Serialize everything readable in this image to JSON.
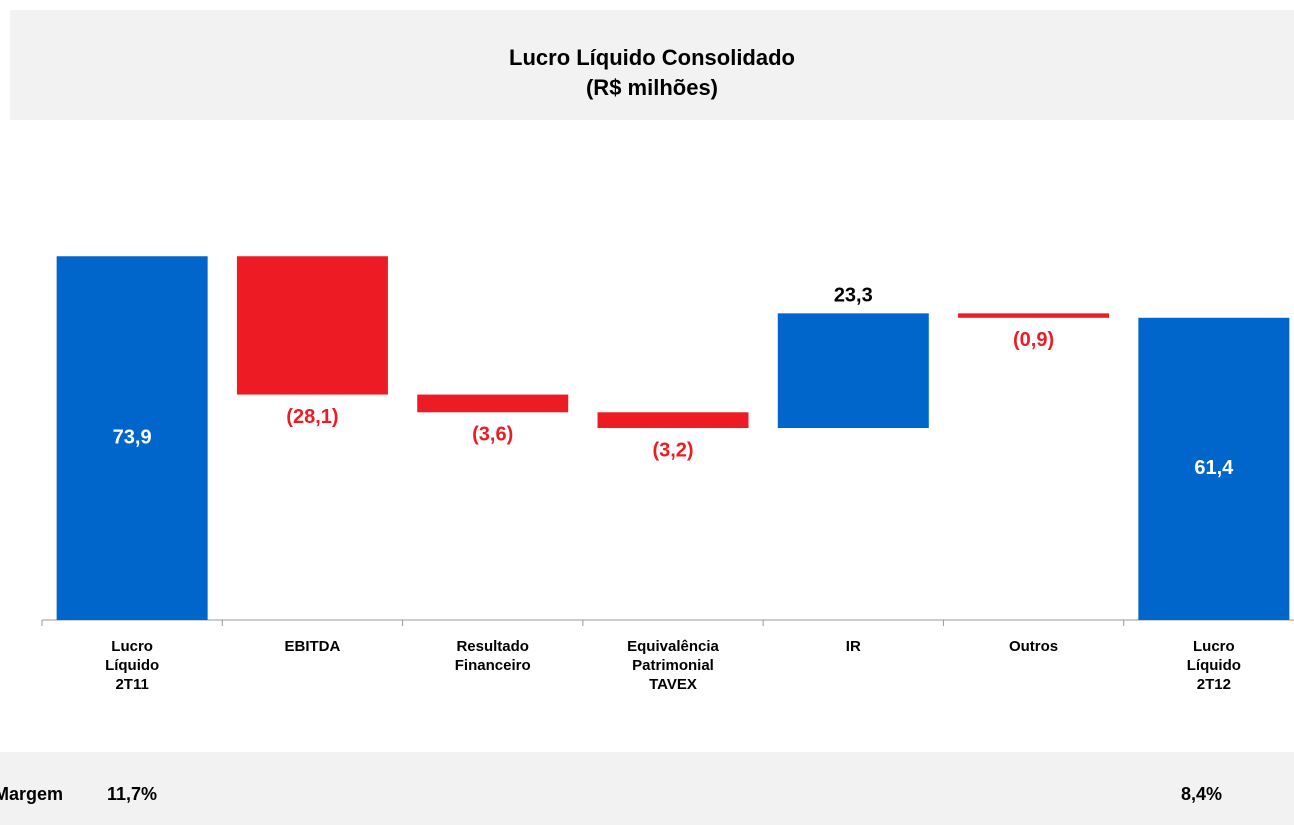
{
  "chart_data": {
    "type": "waterfall",
    "title": "Lucro Líquido Consolidado",
    "subtitle": "(R$ milhões)",
    "categories": [
      "Lucro\nLíquido\n2T11",
      "EBITDA",
      "Resultado\nFinanceiro",
      "Equivalência\nPatrimonial\nTAVEX",
      "IR",
      "Outros",
      "Lucro\nLíquido\n2T12"
    ],
    "values": [
      73.9,
      -28.1,
      -3.6,
      -3.2,
      23.3,
      -0.9,
      61.4
    ],
    "value_labels": [
      "73,9",
      "(28,1)",
      "(3,6)",
      "(3,2)",
      "23,3",
      "(0,9)",
      "61,4"
    ],
    "is_total": [
      true,
      false,
      false,
      false,
      false,
      false,
      true
    ],
    "positive_color": "#0066cc",
    "negative_color": "#ed1c24",
    "ylim": [
      0,
      90
    ],
    "margin_row": {
      "label": "Margem",
      "values": [
        "11,7%",
        "8,4%"
      ]
    }
  }
}
